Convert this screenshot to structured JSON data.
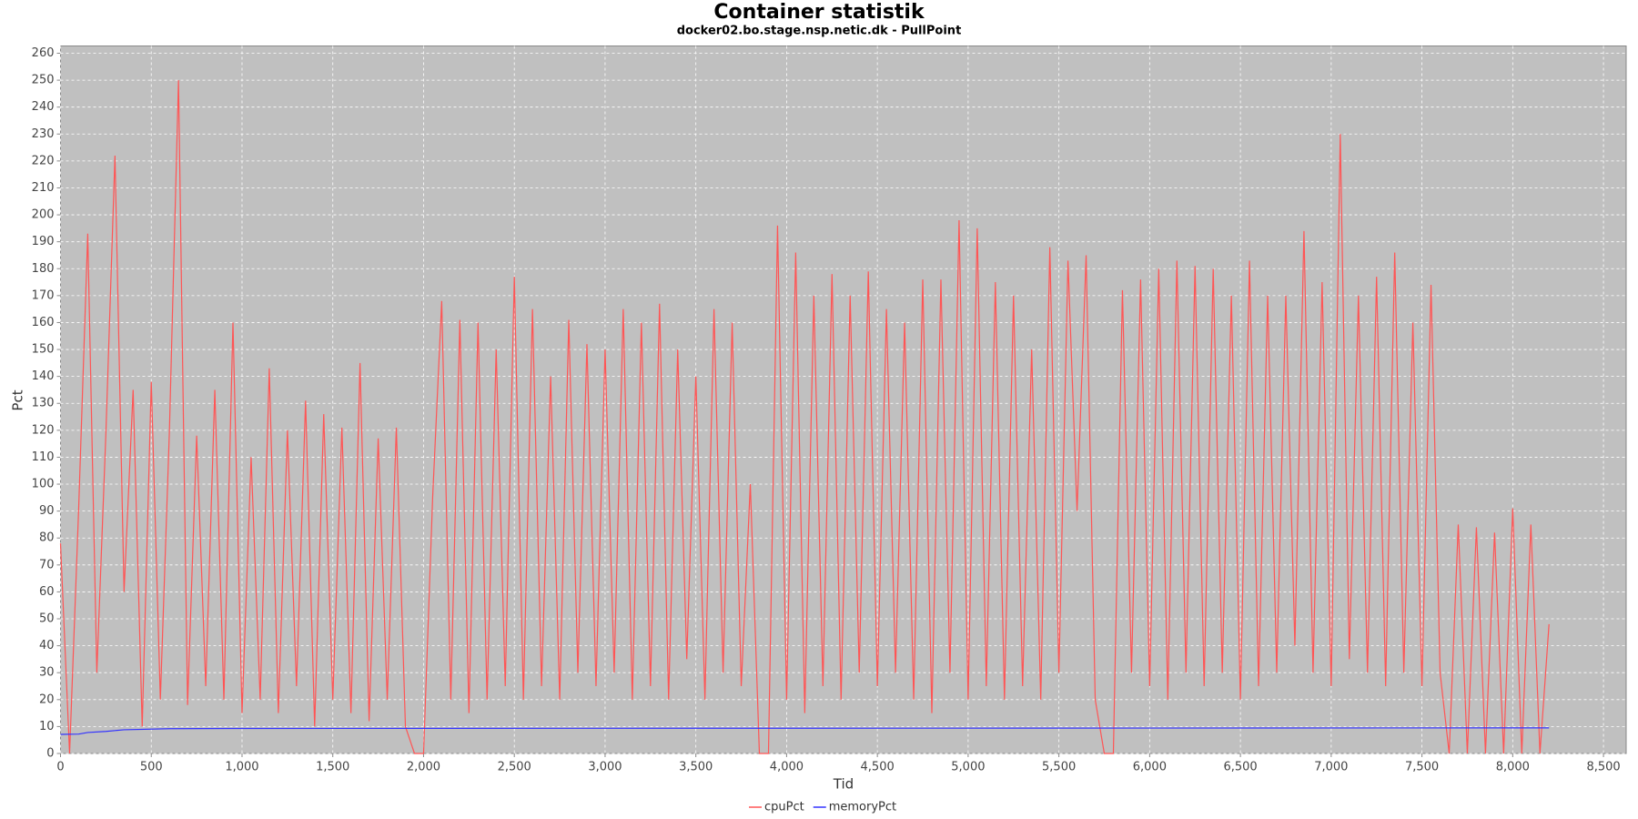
{
  "chart_data": {
    "type": "line",
    "title": "Container statistik",
    "subtitle": "docker02.bo.stage.nsp.netic.dk - PullPoint",
    "x_label": "Tid",
    "y_label": "Pct",
    "grid": true,
    "legend": "bottom",
    "xlim": [
      0,
      8625
    ],
    "ylim": [
      0,
      262.7
    ],
    "xticks": [
      0,
      500,
      {
        "value": 1000,
        "label": "1,000"
      },
      {
        "value": 1500,
        "label": "1,500"
      },
      {
        "value": 2000,
        "label": "2,000"
      },
      {
        "value": 2500,
        "label": "2,500"
      },
      {
        "value": 3000,
        "label": "3,000"
      },
      {
        "value": 3500,
        "label": "3,500"
      },
      {
        "value": 4000,
        "label": "4,000"
      },
      {
        "value": 4500,
        "label": "4,500"
      },
      {
        "value": 5000,
        "label": "5,000"
      },
      {
        "value": 5500,
        "label": "5,500"
      },
      {
        "value": 6000,
        "label": "6,000"
      },
      {
        "value": 6500,
        "label": "6,500"
      },
      {
        "value": 7000,
        "label": "7,000"
      },
      {
        "value": 7500,
        "label": "7,500"
      },
      {
        "value": 8000,
        "label": "8,000"
      },
      {
        "value": 8500,
        "label": "8,500"
      }
    ],
    "yticks": [
      0,
      10,
      20,
      30,
      40,
      50,
      60,
      70,
      80,
      90,
      100,
      110,
      120,
      130,
      140,
      150,
      160,
      170,
      180,
      190,
      200,
      210,
      220,
      230,
      240,
      250,
      260
    ],
    "series": [
      {
        "name": "cpuPct",
        "color": "#ff5555",
        "x": [
          0,
          50,
          100,
          150,
          200,
          250,
          300,
          350,
          400,
          450,
          500,
          550,
          600,
          650,
          700,
          750,
          800,
          850,
          900,
          950,
          1000,
          1050,
          1100,
          1150,
          1200,
          1250,
          1300,
          1350,
          1400,
          1450,
          1500,
          1550,
          1600,
          1650,
          1700,
          1750,
          1800,
          1850,
          1900,
          1950,
          2000,
          2050,
          2100,
          2150,
          2200,
          2250,
          2300,
          2350,
          2400,
          2450,
          2500,
          2550,
          2600,
          2650,
          2700,
          2750,
          2800,
          2850,
          2900,
          2950,
          3000,
          3050,
          3100,
          3150,
          3200,
          3250,
          3300,
          3350,
          3400,
          3450,
          3500,
          3550,
          3600,
          3650,
          3700,
          3750,
          3800,
          3850,
          3900,
          3950,
          4000,
          4050,
          4100,
          4150,
          4200,
          4250,
          4300,
          4350,
          4400,
          4450,
          4500,
          4550,
          4600,
          4650,
          4700,
          4750,
          4800,
          4850,
          4900,
          4950,
          5000,
          5050,
          5100,
          5150,
          5200,
          5250,
          5300,
          5350,
          5400,
          5450,
          5500,
          5550,
          5600,
          5650,
          5700,
          5750,
          5800,
          5850,
          5900,
          5950,
          6000,
          6050,
          6100,
          6150,
          6200,
          6250,
          6300,
          6350,
          6400,
          6450,
          6500,
          6550,
          6600,
          6650,
          6700,
          6750,
          6800,
          6850,
          6900,
          6950,
          7000,
          7050,
          7100,
          7150,
          7200,
          7250,
          7300,
          7350,
          7400,
          7450,
          7500,
          7550,
          7600,
          7650,
          7700,
          7750,
          7800,
          7850,
          7900,
          7950,
          8000,
          8050,
          8100,
          8150,
          8200
        ],
        "values": [
          78,
          0,
          91,
          193,
          30,
          119,
          222,
          60,
          135,
          10,
          138,
          20,
          120,
          250,
          18,
          118,
          25,
          135,
          20,
          160,
          15,
          110,
          20,
          143,
          15,
          120,
          25,
          131,
          10,
          126,
          20,
          121,
          15,
          145,
          12,
          117,
          20,
          121,
          10,
          0,
          0,
          95,
          168,
          20,
          161,
          15,
          160,
          20,
          150,
          25,
          177,
          20,
          165,
          25,
          140,
          20,
          161,
          30,
          152,
          25,
          150,
          30,
          165,
          20,
          160,
          25,
          167,
          20,
          150,
          35,
          140,
          20,
          165,
          30,
          160,
          25,
          100,
          0,
          0,
          196,
          20,
          186,
          15,
          170,
          25,
          178,
          20,
          170,
          30,
          179,
          25,
          165,
          30,
          160,
          20,
          176,
          15,
          176,
          30,
          198,
          20,
          195,
          25,
          175,
          20,
          170,
          25,
          150,
          20,
          188,
          30,
          183,
          90,
          185,
          20,
          0,
          0,
          172,
          30,
          176,
          25,
          180,
          20,
          183,
          30,
          181,
          25,
          180,
          30,
          170,
          20,
          183,
          25,
          170,
          30,
          170,
          40,
          194,
          30,
          175,
          25,
          230,
          35,
          170,
          30,
          177,
          25,
          186,
          30,
          160,
          25,
          174,
          30,
          0,
          85,
          0,
          84,
          0,
          82,
          0,
          91,
          0,
          85,
          0,
          48
        ]
      },
      {
        "name": "memoryPct",
        "color": "#3333ff",
        "x": [
          0,
          100,
          150,
          250,
          350,
          600,
          1000,
          8200
        ],
        "values": [
          7.1,
          7.2,
          7.8,
          8.2,
          8.8,
          9.2,
          9.3,
          9.5
        ]
      }
    ]
  }
}
